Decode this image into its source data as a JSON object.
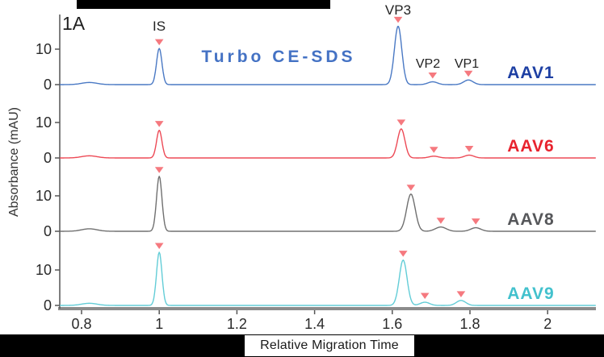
{
  "figure_label": "1A",
  "title": {
    "text": "Turbo CE-SDS",
    "color": "#4472C4"
  },
  "x_axis": {
    "label": "Relative Migration Time",
    "tick_labels": [
      "0.8",
      "1",
      "1.2",
      "1.4",
      "1.6",
      "1.8",
      "2"
    ]
  },
  "y_axis": {
    "label": "Absorbance (mAU)",
    "tick_labels_per_trace": [
      "10",
      "0"
    ]
  },
  "chart_data": {
    "type": "line",
    "xlabel": "Relative Migration Time",
    "ylabel": "Absorbance (mAU)",
    "x_range": [
      0.744,
      2.125
    ],
    "x_ticks": [
      0.8,
      1.0,
      1.2,
      1.4,
      1.6,
      1.8,
      2.0
    ],
    "y_ticks_mau_per_trace": [
      10,
      0
    ],
    "grid": "off",
    "legend_position": "right-of-each-trace",
    "marker_shape": "triangle-down",
    "marker_color": "#F5797F",
    "axis_color": "#555555",
    "baseline_bar_color": "#8C8C8C",
    "tick_text_color": "#2a2a2a",
    "series": [
      {
        "name": "AAV1",
        "trace_color": "#4A79C4",
        "label_color": "#1D3FA3",
        "baseline_bump": {
          "x": 0.82,
          "height_mau": 0.6,
          "sigma": 0.02
        },
        "peaks": [
          {
            "id": "IS",
            "x": 1.0,
            "height_mau": 10.2,
            "sigma": 0.007
          },
          {
            "id": "VP3",
            "x": 1.615,
            "height_mau": 16.5,
            "sigma": 0.0095
          },
          {
            "id": "VP2",
            "x": 1.704,
            "height_mau": 0.8,
            "sigma": 0.012
          },
          {
            "id": "VP1",
            "x": 1.796,
            "height_mau": 1.3,
            "sigma": 0.012
          }
        ]
      },
      {
        "name": "AAV6",
        "trace_color": "#ED4A56",
        "label_color": "#E8232E",
        "baseline_bump": {
          "x": 0.82,
          "height_mau": 0.6,
          "sigma": 0.02
        },
        "peaks": [
          {
            "id": "IS",
            "x": 1.0,
            "height_mau": 7.8,
            "sigma": 0.007
          },
          {
            "id": "VP3",
            "x": 1.623,
            "height_mau": 8.2,
            "sigma": 0.0095
          },
          {
            "id": "VP2",
            "x": 1.707,
            "height_mau": 0.5,
            "sigma": 0.012
          },
          {
            "id": "VP1",
            "x": 1.798,
            "height_mau": 0.8,
            "sigma": 0.012
          }
        ]
      },
      {
        "name": "AAV8",
        "trace_color": "#707070",
        "label_color": "#56575A",
        "baseline_bump": {
          "x": 0.82,
          "height_mau": 0.7,
          "sigma": 0.02
        },
        "peaks": [
          {
            "id": "IS",
            "x": 1.0,
            "height_mau": 15.5,
            "sigma": 0.007
          },
          {
            "id": "VP3",
            "x": 1.648,
            "height_mau": 10.5,
            "sigma": 0.011
          },
          {
            "id": "VP2",
            "x": 1.725,
            "height_mau": 1.2,
            "sigma": 0.014
          },
          {
            "id": "VP1",
            "x": 1.815,
            "height_mau": 1.0,
            "sigma": 0.013
          }
        ]
      },
      {
        "name": "AAV9",
        "trace_color": "#63CDD7",
        "label_color": "#42C1CD",
        "baseline_bump": {
          "x": 0.82,
          "height_mau": 0.6,
          "sigma": 0.02
        },
        "peaks": [
          {
            "id": "IS",
            "x": 1.0,
            "height_mau": 15.0,
            "sigma": 0.007
          },
          {
            "id": "VP3",
            "x": 1.628,
            "height_mau": 12.8,
            "sigma": 0.01
          },
          {
            "id": "VP2",
            "x": 1.684,
            "height_mau": 0.9,
            "sigma": 0.012
          },
          {
            "id": "VP1",
            "x": 1.777,
            "height_mau": 1.4,
            "sigma": 0.012
          }
        ]
      }
    ]
  }
}
